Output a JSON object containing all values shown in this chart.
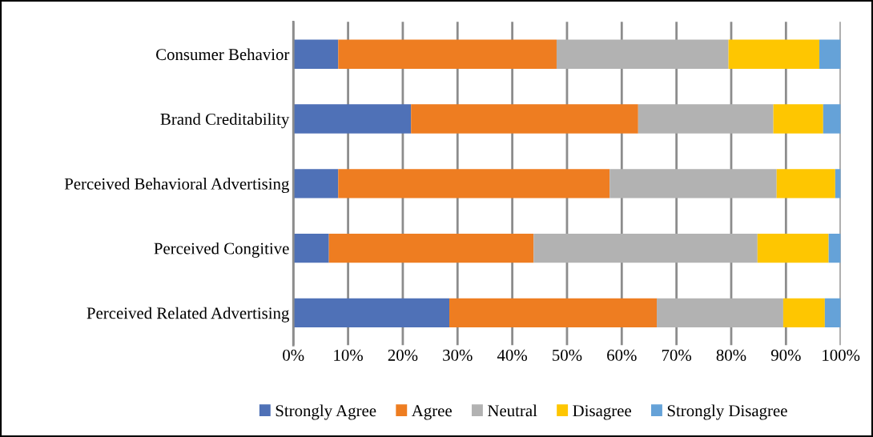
{
  "chart_data": {
    "type": "bar",
    "orientation": "horizontal",
    "stacked": true,
    "categories": [
      "Consumer Behavior",
      "Brand Creditability",
      "Perceived Behavioral Advertising",
      "Perceived Congitive",
      "Perceived Related Advertising"
    ],
    "series": [
      {
        "name": "Strongly Agree",
        "color": "#4f71b7",
        "values": [
          8.2,
          21.5,
          8.2,
          6.5,
          28.5
        ]
      },
      {
        "name": "Agree",
        "color": "#ee7d21",
        "values": [
          39.9,
          41.5,
          49.6,
          37.4,
          37.9
        ]
      },
      {
        "name": "Neutral",
        "color": "#b2b2b2",
        "values": [
          31.4,
          24.7,
          30.5,
          40.9,
          23.1
        ]
      },
      {
        "name": "Disagree",
        "color": "#fec601",
        "values": [
          16.6,
          9.1,
          10.7,
          13.0,
          7.6
        ]
      },
      {
        "name": "Strongly Disagree",
        "color": "#65a2d8",
        "values": [
          3.9,
          3.2,
          1.0,
          2.2,
          2.9
        ]
      }
    ],
    "xlim": [
      0,
      100
    ],
    "xticks": [
      {
        "value": 0,
        "label": "0%"
      },
      {
        "value": 10,
        "label": "10%"
      },
      {
        "value": 20,
        "label": "20%"
      },
      {
        "value": 30,
        "label": "30%"
      },
      {
        "value": 40,
        "label": "40%"
      },
      {
        "value": 50,
        "label": "50%"
      },
      {
        "value": 60,
        "label": "60%"
      },
      {
        "value": 70,
        "label": "70%"
      },
      {
        "value": 80,
        "label": "80%"
      },
      {
        "value": 90,
        "label": "90%"
      },
      {
        "value": 100,
        "label": "100%"
      }
    ],
    "grid": "x",
    "legend": "bottom"
  }
}
